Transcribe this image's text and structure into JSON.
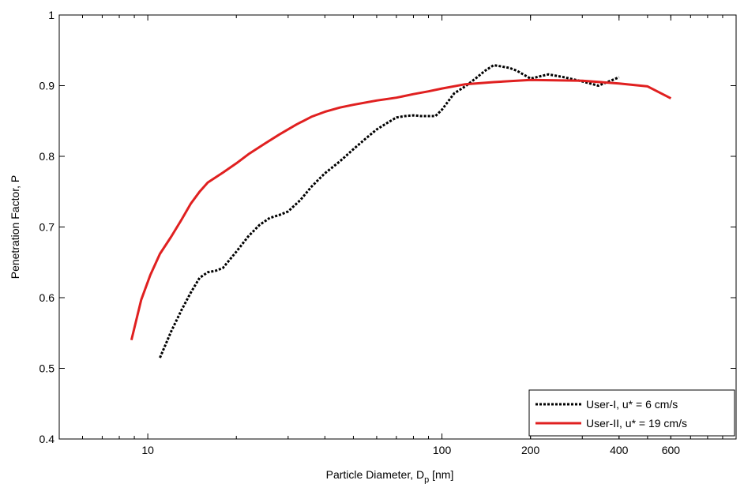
{
  "chart_data": {
    "type": "line",
    "xscale": "log",
    "xlim": [
      5,
      1000
    ],
    "ylim": [
      0.4,
      1.0
    ],
    "xticks": [
      10,
      100,
      200,
      400,
      600
    ],
    "xtick_labels": [
      "10",
      "100",
      "200",
      "400",
      "600"
    ],
    "yticks": [
      0.4,
      0.5,
      0.6,
      0.7,
      0.8,
      0.9,
      1.0
    ],
    "ytick_labels": [
      "0.4",
      "0.5",
      "0.6",
      "0.7",
      "0.8",
      "0.9",
      "1"
    ],
    "xlabel_main": "Particle Diameter, D",
    "xlabel_sub": "p",
    "xlabel_unit": " [nm]",
    "ylabel": "Penetration Factor, P",
    "grid": false,
    "legend_position": "bottom-right",
    "series": [
      {
        "name": "User-I, u* = 6 cm/s",
        "color": "#000000",
        "dash": "dotted",
        "x": [
          11,
          12,
          13,
          14,
          15,
          16,
          17,
          18,
          20,
          22,
          24,
          26,
          28,
          30,
          33,
          36,
          40,
          45,
          50,
          55,
          60,
          65,
          70,
          75,
          80,
          85,
          90,
          95,
          100,
          110,
          120,
          130,
          140,
          150,
          160,
          170,
          180,
          200,
          230,
          260,
          300,
          340,
          380,
          400
        ],
        "y": [
          0.515,
          0.552,
          0.582,
          0.607,
          0.628,
          0.636,
          0.638,
          0.642,
          0.665,
          0.687,
          0.703,
          0.713,
          0.717,
          0.722,
          0.738,
          0.757,
          0.776,
          0.793,
          0.81,
          0.825,
          0.838,
          0.847,
          0.855,
          0.857,
          0.858,
          0.857,
          0.857,
          0.857,
          0.866,
          0.889,
          0.899,
          0.91,
          0.921,
          0.929,
          0.927,
          0.925,
          0.921,
          0.91,
          0.916,
          0.912,
          0.906,
          0.9,
          0.908,
          0.912
        ]
      },
      {
        "name": "User-II, u* = 19 cm/s",
        "color": "#e02020",
        "dash": "solid",
        "x": [
          8.8,
          9.5,
          10.2,
          11,
          12,
          13,
          14,
          15,
          16,
          18,
          20,
          22,
          25,
          28,
          32,
          36,
          40,
          45,
          50,
          60,
          70,
          80,
          90,
          100,
          120,
          150,
          200,
          300,
          400,
          500,
          600
        ],
        "y": [
          0.54,
          0.597,
          0.632,
          0.662,
          0.686,
          0.71,
          0.733,
          0.75,
          0.763,
          0.777,
          0.79,
          0.803,
          0.818,
          0.831,
          0.845,
          0.856,
          0.863,
          0.869,
          0.873,
          0.879,
          0.883,
          0.888,
          0.892,
          0.896,
          0.902,
          0.905,
          0.908,
          0.907,
          0.903,
          0.899,
          0.882
        ]
      }
    ]
  }
}
